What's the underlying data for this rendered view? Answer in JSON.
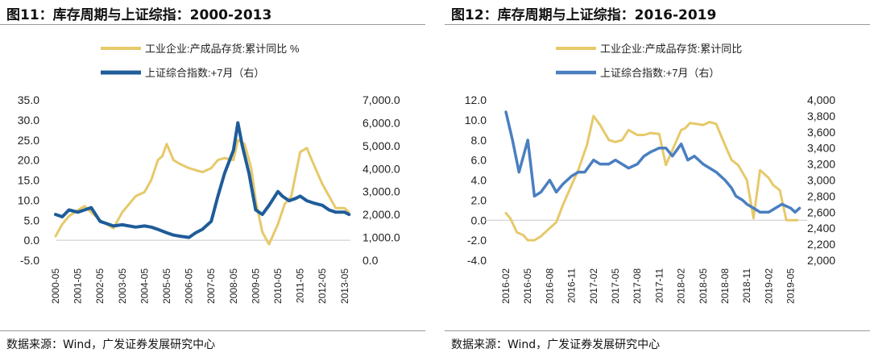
{
  "charts": [
    {
      "title": "图11：库存周期与上证综指：2000-2013",
      "source": "数据来源：Wind，广发证券发展研究中心",
      "chart_data": {
        "type": "line",
        "colors": {
          "inventory": "#E6C96A",
          "index": "#1F5C99"
        },
        "line_widths": {
          "inventory": 3,
          "index": 4
        },
        "x_ticks": [
          "2000-05",
          "2001-05",
          "2002-05",
          "2003-05",
          "2004-05",
          "2005-05",
          "2006-05",
          "2007-05",
          "2008-05",
          "2009-05",
          "2010-05",
          "2011-05",
          "2012-05",
          "2013-05"
        ],
        "y_left": {
          "min": -5,
          "max": 35,
          "ticks": [
            "35.0",
            "30.0",
            "25.0",
            "20.0",
            "15.0",
            "10.0",
            "5.0",
            "0.0",
            "-5.0"
          ]
        },
        "y_right": {
          "min": 0,
          "max": 7000,
          "ticks": [
            "7,000.0",
            "6,000.0",
            "5,000.0",
            "4,000.0",
            "3,000.0",
            "2,000.0",
            "1,000.0",
            "0.0"
          ]
        },
        "series": [
          {
            "name": "工业企业:产成品存货:累计同比 %",
            "key": "inventory",
            "axis": "left",
            "x": [
              0,
              0.3,
              0.6,
              1.0,
              1.3,
              1.6,
              2.0,
              2.3,
              2.6,
              3.0,
              3.3,
              3.6,
              4.0,
              4.3,
              4.6,
              4.8,
              5.0,
              5.3,
              5.6,
              6.0,
              6.3,
              6.6,
              7.0,
              7.3,
              7.6,
              8.0,
              8.2,
              8.5,
              8.8,
              9.0,
              9.3,
              9.6,
              10.0,
              10.3,
              10.6,
              11.0,
              11.3,
              11.6,
              12.0,
              12.3,
              12.6,
              13.0,
              13.2
            ],
            "values": [
              1,
              4,
              6,
              7.5,
              8.5,
              7,
              5,
              4,
              3,
              7,
              9,
              11,
              12,
              15,
              20,
              21,
              24,
              20,
              19,
              18,
              17.5,
              17,
              18,
              20,
              20.5,
              20,
              25,
              24,
              18,
              10,
              2,
              -1,
              4,
              9,
              11,
              22,
              23,
              19,
              14,
              11,
              8,
              8,
              7
            ]
          },
          {
            "name": "上证综合指数:+7月（右）",
            "key": "index",
            "axis": "right",
            "x": [
              0,
              0.3,
              0.6,
              1.0,
              1.3,
              1.6,
              2.0,
              2.3,
              2.6,
              3.0,
              3.3,
              3.6,
              4.0,
              4.3,
              4.6,
              5.0,
              5.3,
              5.6,
              6.0,
              6.3,
              6.6,
              7.0,
              7.3,
              7.6,
              8.0,
              8.2,
              8.4,
              8.7,
              9.0,
              9.3,
              9.6,
              10.0,
              10.2,
              10.5,
              10.8,
              11.0,
              11.3,
              11.6,
              12.0,
              12.3,
              12.6,
              13.0,
              13.2
            ],
            "values": [
              2000,
              1900,
              2200,
              2100,
              2200,
              2300,
              1700,
              1600,
              1500,
              1550,
              1500,
              1450,
              1500,
              1450,
              1350,
              1200,
              1100,
              1050,
              1000,
              1200,
              1350,
              1700,
              2800,
              3800,
              4800,
              6000,
              5000,
              3800,
              2200,
              2000,
              2400,
              3000,
              2800,
              2600,
              2700,
              2800,
              2600,
              2500,
              2400,
              2200,
              2100,
              2100,
              2000
            ]
          }
        ]
      }
    },
    {
      "title": "图12：库存周期与上证综指：2016-2019",
      "source": "数据来源：Wind，广发证券发展研究中心",
      "chart_data": {
        "type": "line",
        "colors": {
          "inventory": "#E6C96A",
          "index": "#4A7FC1"
        },
        "line_widths": {
          "inventory": 3,
          "index": 3.5
        },
        "x_ticks": [
          "2016-02",
          "2016-05",
          "2016-08",
          "2016-11",
          "2017-02",
          "2017-05",
          "2017-08",
          "2017-11",
          "2018-02",
          "2018-05",
          "2018-08",
          "2018-11",
          "2019-02",
          "2019-05"
        ],
        "y_left": {
          "min": -4,
          "max": 12,
          "ticks": [
            "12.0",
            "10.0",
            "8.0",
            "6.0",
            "4.0",
            "2.0",
            "0.0",
            "-2.0",
            "-4.0"
          ]
        },
        "y_right": {
          "min": 2000,
          "max": 4000,
          "ticks": [
            "4,000",
            "3,800",
            "3,600",
            "3,400",
            "3,200",
            "3,000",
            "2,800",
            "2,600",
            "2,400",
            "2,200",
            "2,000"
          ]
        },
        "series": [
          {
            "name": "工业企业:产成品存货:累计同比",
            "key": "inventory",
            "axis": "left",
            "x": [
              0,
              0.2,
              0.5,
              0.8,
              1.0,
              1.3,
              1.6,
              2.0,
              2.3,
              2.6,
              3.0,
              3.3,
              3.7,
              4.0,
              4.3,
              4.7,
              5.0,
              5.3,
              5.6,
              6.0,
              6.3,
              6.6,
              7.0,
              7.3,
              7.6,
              8.0,
              8.2,
              8.4,
              8.7,
              9.0,
              9.3,
              9.6,
              10.0,
              10.3,
              10.6,
              11.0,
              11.3,
              11.6,
              12.0,
              12.2,
              12.5,
              12.8,
              13.0,
              13.3
            ],
            "values": [
              0.7,
              0.2,
              -1.2,
              -1.5,
              -2,
              -2,
              -1.6,
              -0.8,
              -0.2,
              1.5,
              3.5,
              5,
              7.5,
              10.4,
              9.5,
              8,
              7.8,
              8,
              9,
              8.5,
              8.5,
              8.7,
              8.6,
              5.5,
              7,
              9,
              9.2,
              9.7,
              9.6,
              9.5,
              9.8,
              9.6,
              7.5,
              6,
              5.5,
              4,
              0.2,
              5,
              4.2,
              3.5,
              3,
              0,
              0,
              0
            ]
          },
          {
            "name": "上证综合指数:+7月（右）",
            "key": "index",
            "axis": "right",
            "x": [
              0,
              0.3,
              0.6,
              1.0,
              1.3,
              1.6,
              2.0,
              2.3,
              2.6,
              3.0,
              3.3,
              3.6,
              4.0,
              4.3,
              4.7,
              5.0,
              5.3,
              5.6,
              6.0,
              6.3,
              6.6,
              7.0,
              7.3,
              7.6,
              8.0,
              8.3,
              8.6,
              9.0,
              9.3,
              9.6,
              10.0,
              10.3,
              10.5,
              10.8,
              11.0,
              11.3,
              11.6,
              12.0,
              12.3,
              12.6,
              13.0,
              13.2,
              13.4
            ],
            "values": [
              3850,
              3500,
              3100,
              3500,
              2800,
              2850,
              3000,
              2850,
              2950,
              3050,
              3100,
              3100,
              3250,
              3200,
              3200,
              3250,
              3200,
              3150,
              3200,
              3300,
              3350,
              3400,
              3400,
              3300,
              3450,
              3250,
              3300,
              3200,
              3150,
              3100,
              3000,
              2900,
              2800,
              2750,
              2700,
              2650,
              2600,
              2600,
              2650,
              2700,
              2650,
              2600,
              2650
            ]
          }
        ]
      }
    }
  ]
}
